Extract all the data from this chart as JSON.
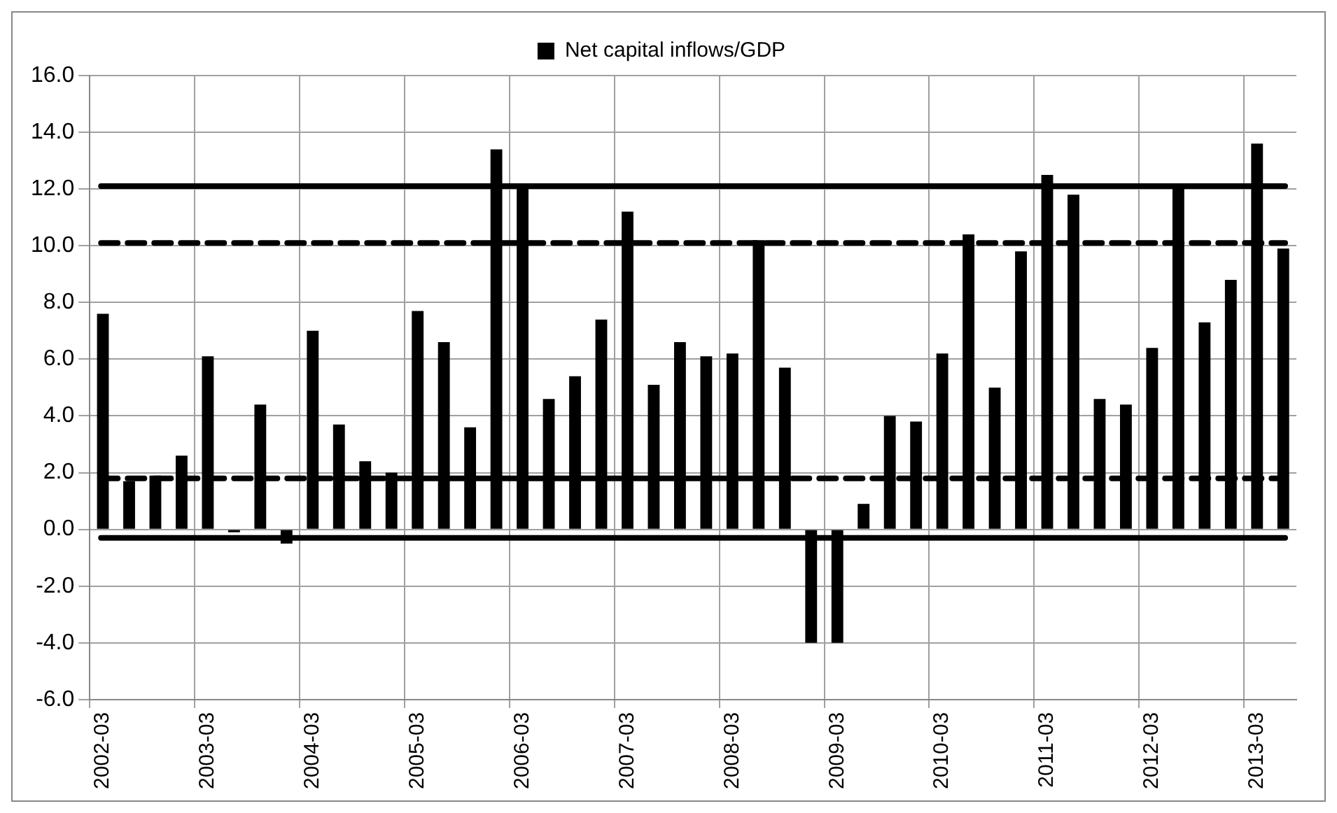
{
  "chart_data": {
    "type": "bar",
    "categories": [
      "2002-03",
      null,
      null,
      null,
      "2003-03",
      null,
      null,
      null,
      "2004-03",
      null,
      null,
      null,
      "2005-03",
      null,
      null,
      null,
      "2006-03",
      null,
      null,
      null,
      "2007-03",
      null,
      null,
      null,
      "2008-03",
      null,
      null,
      null,
      "2009-03",
      null,
      null,
      null,
      "2010-03",
      null,
      null,
      null,
      "2011-03",
      null,
      null,
      null,
      "2012-03",
      null,
      null,
      null,
      "2013-03",
      null
    ],
    "series": [
      {
        "name": "Net capital inflows/GDP",
        "color": "#000000",
        "values": [
          7.6,
          1.7,
          1.9,
          2.6,
          6.1,
          -0.1,
          4.4,
          -0.5,
          7.0,
          3.7,
          2.4,
          2.0,
          7.7,
          6.6,
          3.6,
          13.4,
          12.1,
          4.6,
          5.4,
          7.4,
          11.2,
          5.1,
          6.6,
          6.1,
          6.2,
          10.2,
          5.7,
          -4.0,
          -4.0,
          0.9,
          4.0,
          3.8,
          6.2,
          10.4,
          5.0,
          9.8,
          12.5,
          11.8,
          4.6,
          4.4,
          6.4,
          12.1,
          7.3,
          8.8,
          13.6,
          9.9
        ]
      }
    ],
    "ylim": [
      -6,
      16
    ],
    "yticks": [
      {
        "value": -6,
        "label": "-6.0"
      },
      {
        "value": -4,
        "label": "-4.0"
      },
      {
        "value": -2,
        "label": "-2.0"
      },
      {
        "value": 0,
        "label": "0.0"
      },
      {
        "value": 2,
        "label": "2.0"
      },
      {
        "value": 4,
        "label": "4.0"
      },
      {
        "value": 6,
        "label": "6.0"
      },
      {
        "value": 8,
        "label": "8.0"
      },
      {
        "value": 10,
        "label": "10.0"
      },
      {
        "value": 12,
        "label": "12.0"
      },
      {
        "value": 14,
        "label": "14.0"
      },
      {
        "value": 16,
        "label": "16.0"
      }
    ],
    "ref_lines": [
      {
        "axis": "y",
        "value": 12.1,
        "color": "#000000",
        "line_style": "solid"
      },
      {
        "axis": "y",
        "value": 10.1,
        "color": "#000000",
        "line_style": "dashed"
      },
      {
        "axis": "y",
        "value": 1.8,
        "color": "#000000",
        "line_style": "dashed"
      },
      {
        "axis": "y",
        "value": -0.3,
        "color": "#000000",
        "line_style": "solid"
      }
    ],
    "grid": true,
    "legend": "top"
  }
}
